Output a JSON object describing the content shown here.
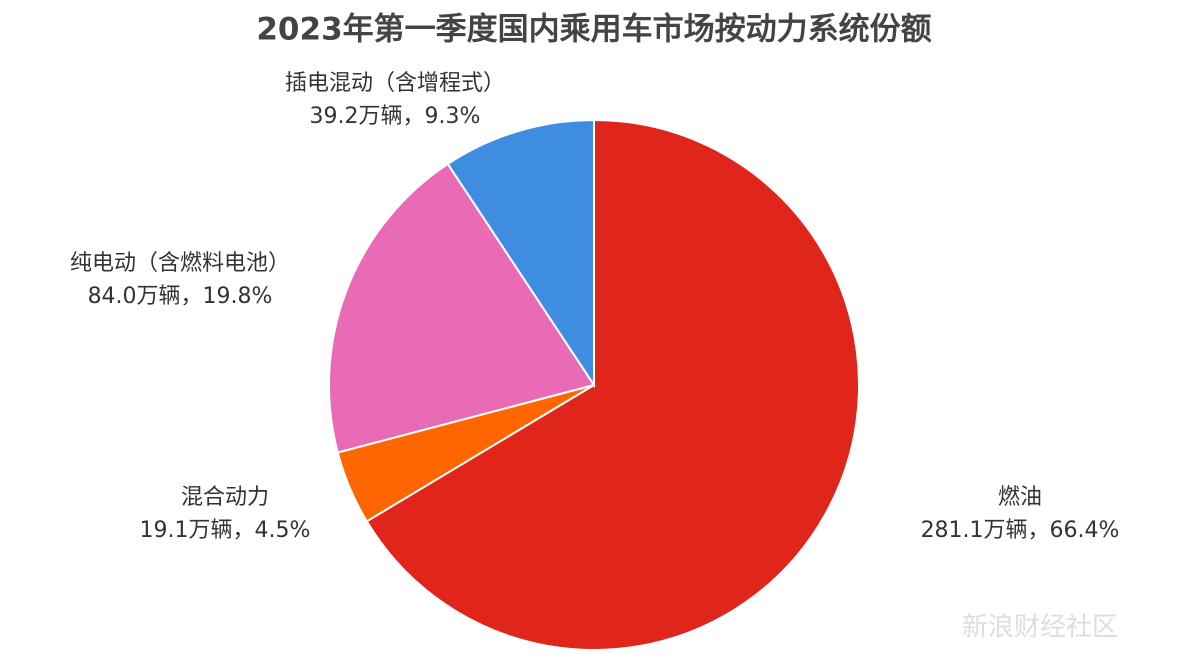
{
  "chart_data": {
    "type": "pie",
    "title": "2023年第一季度国内乘用车市场按动力系统份额",
    "categories": [
      "燃油",
      "混合动力",
      "纯电动（含燃料电池）",
      "插电混动（含增程式）"
    ],
    "values": [
      66.4,
      4.5,
      19.8,
      9.3
    ],
    "value_labels": [
      "281.1万辆，66.4%",
      "19.1万辆，4.5%",
      "84.0万辆，19.8%",
      "39.2万辆，9.3%"
    ],
    "colors": [
      "#e0251b",
      "#ff6600",
      "#ea6bb5",
      "#3e8de0"
    ],
    "watermark": "新浪财经社区"
  }
}
